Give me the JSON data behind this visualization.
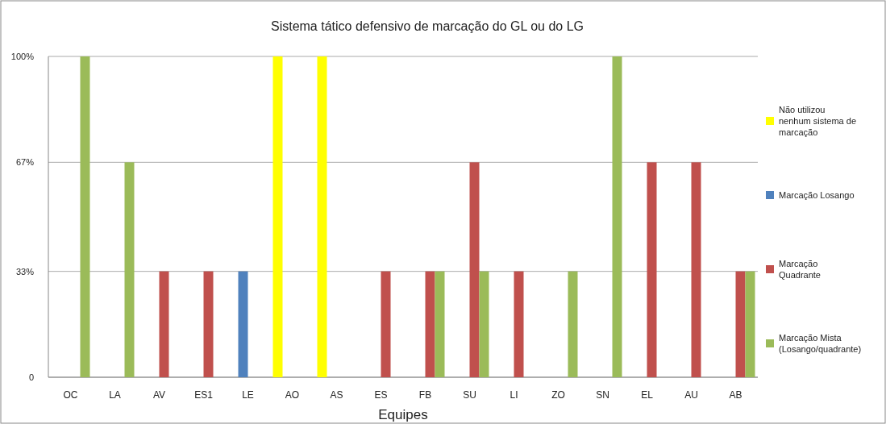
{
  "chart_data": {
    "type": "bar",
    "title": "Sistema tático defensivo de marcação do GL ou do LG",
    "xlabel": "Equipes",
    "categories": [
      "OC",
      "LA",
      "AV",
      "ES1",
      "LE",
      "AO",
      "AS",
      "ES",
      "FB",
      "SU",
      "LI",
      "ZO",
      "SN",
      "EL",
      "AU",
      "AB"
    ],
    "series": [
      {
        "name": "Não utilizou nenhum sistema de marcação",
        "color": "#ffff00",
        "values": [
          null,
          null,
          null,
          null,
          null,
          100,
          100,
          null,
          null,
          null,
          null,
          null,
          null,
          null,
          null,
          null
        ]
      },
      {
        "name": "Marcação Losango",
        "color": "#4f81bd",
        "values": [
          null,
          null,
          null,
          null,
          33,
          null,
          null,
          null,
          null,
          null,
          null,
          null,
          null,
          null,
          null,
          null
        ]
      },
      {
        "name": "Marcação Quadrante",
        "color": "#c0504d",
        "values": [
          null,
          null,
          33,
          33,
          null,
          null,
          null,
          33,
          33,
          67,
          33,
          null,
          null,
          67,
          67,
          33
        ]
      },
      {
        "name": "Marcação Mista (Losango/quadrante)",
        "color": "#9bbb59",
        "values": [
          100,
          67,
          null,
          null,
          null,
          null,
          null,
          null,
          33,
          33,
          null,
          33,
          100,
          null,
          null,
          33
        ]
      }
    ],
    "ylim": [
      0,
      100
    ],
    "yticks": [
      0,
      {
        "value": 33,
        "label": "33%"
      },
      {
        "value": 67,
        "label": "67%"
      },
      {
        "value": 100,
        "label": "100%"
      }
    ],
    "grid": "y",
    "legend": "right"
  }
}
